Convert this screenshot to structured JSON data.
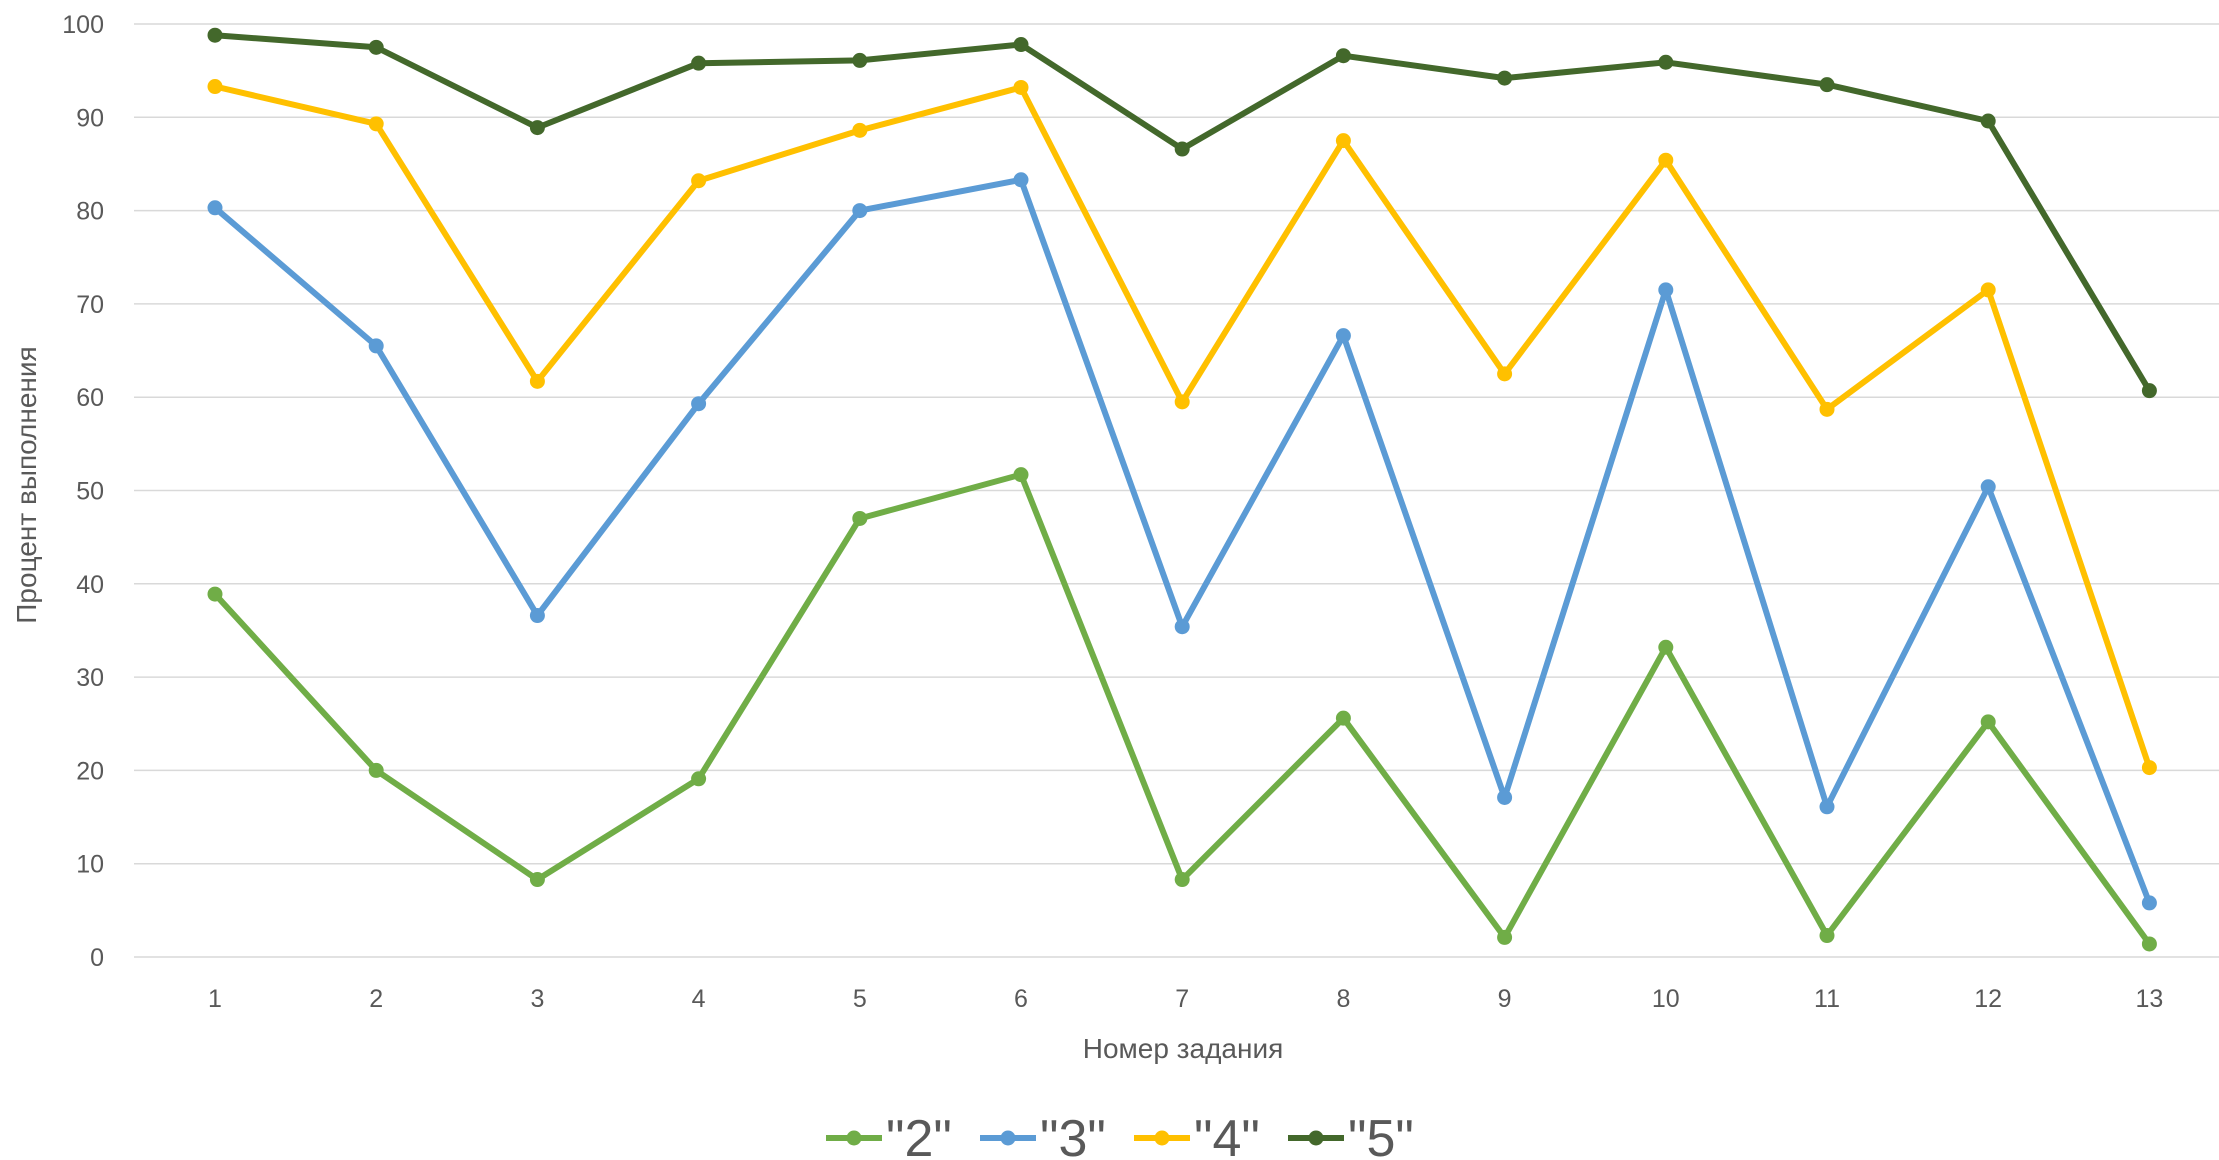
{
  "chart_data": {
    "type": "line",
    "title": "",
    "xlabel": "Номер задания",
    "ylabel": "Процент выполнения",
    "categories": [
      "1",
      "2",
      "3",
      "4",
      "5",
      "6",
      "7",
      "8",
      "9",
      "10",
      "11",
      "12",
      "13"
    ],
    "ylim": [
      0,
      100
    ],
    "yticks": [
      "0",
      "10",
      "20",
      "30",
      "40",
      "50",
      "60",
      "70",
      "80",
      "90",
      "100"
    ],
    "grid": true,
    "legend_position": "bottom",
    "series": [
      {
        "name": "\"2\"",
        "color": "#70ad47",
        "values": [
          38.9,
          20.0,
          8.3,
          19.1,
          47.0,
          51.7,
          8.3,
          25.6,
          2.1,
          33.2,
          2.3,
          25.2,
          1.4
        ]
      },
      {
        "name": "\"3\"",
        "color": "#5b9bd5",
        "values": [
          80.3,
          65.5,
          36.6,
          59.3,
          80.0,
          83.3,
          35.4,
          66.6,
          17.1,
          71.5,
          16.1,
          50.4,
          5.8
        ]
      },
      {
        "name": "\"4\"",
        "color": "#ffc000",
        "values": [
          93.3,
          89.3,
          61.7,
          83.2,
          88.6,
          93.2,
          59.5,
          87.5,
          62.5,
          85.4,
          58.7,
          71.5,
          20.3
        ]
      },
      {
        "name": "\"5\"",
        "color": "#43682b",
        "values": [
          98.8,
          97.5,
          88.9,
          95.8,
          96.1,
          97.8,
          86.6,
          96.6,
          94.2,
          95.9,
          93.5,
          89.6,
          60.7
        ]
      }
    ]
  }
}
